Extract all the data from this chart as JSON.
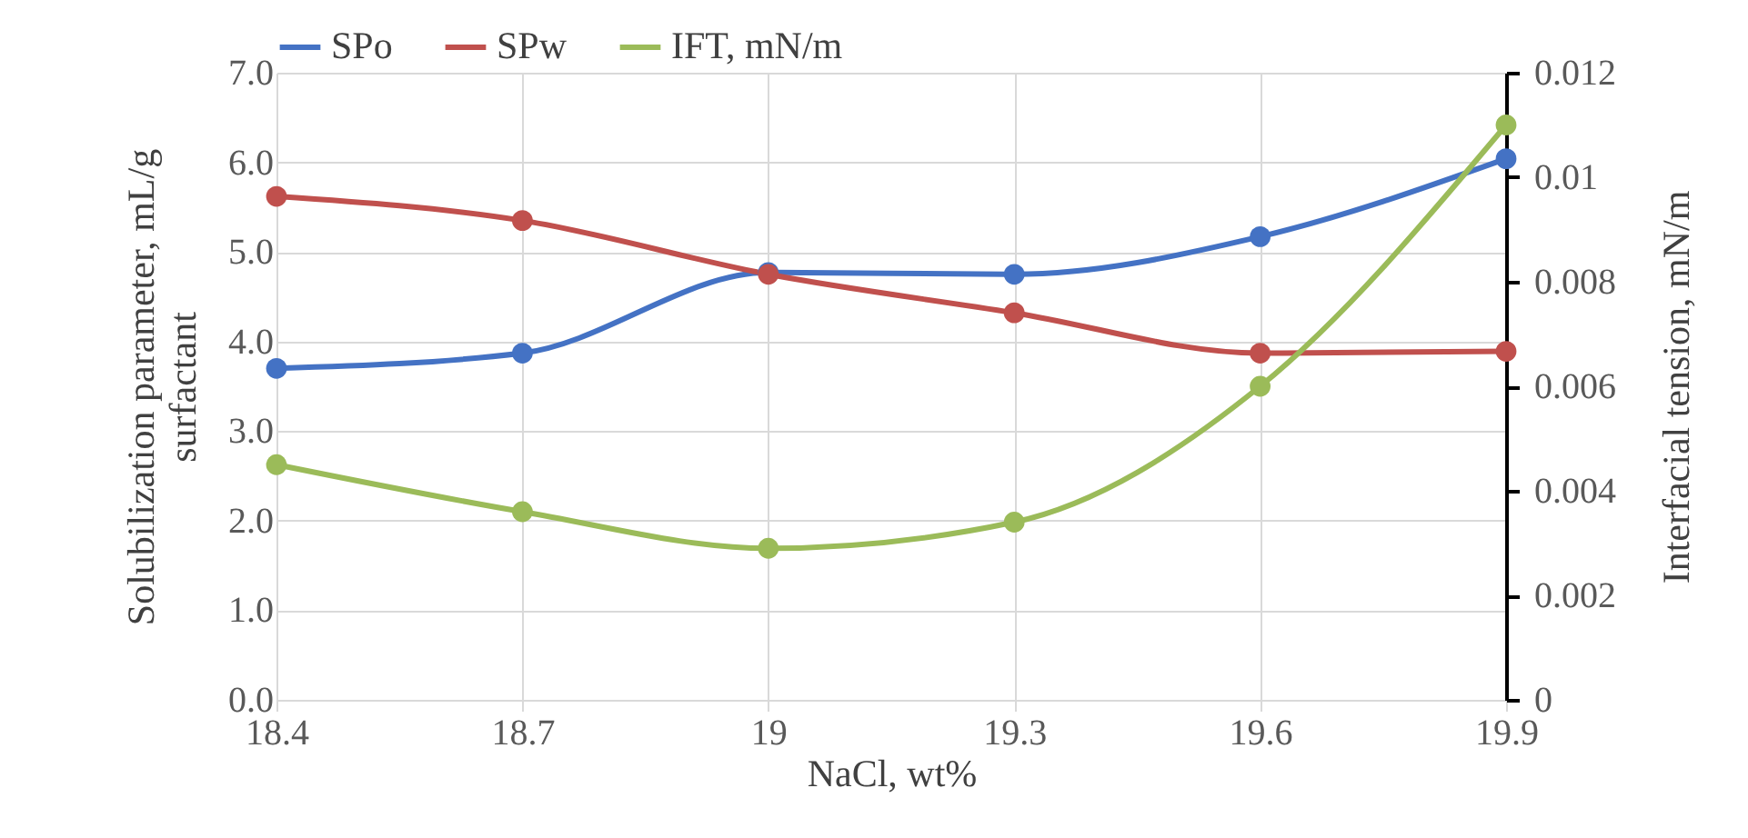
{
  "chart_data": {
    "type": "line",
    "xlabel": "NaCl, wt%",
    "ylabel": "Solubilization parameter, mL/g surfactant",
    "y2label": "Interfacial tension, mN/m",
    "x": [
      18.4,
      18.7,
      19,
      19.3,
      19.6,
      19.9
    ],
    "series": [
      {
        "name": "SPo",
        "color": "#4472c4",
        "values": [
          3.7,
          3.87,
          4.77,
          4.75,
          5.17,
          6.04
        ]
      },
      {
        "name": "SPw",
        "color": "#c0504d",
        "values": [
          5.62,
          5.35,
          4.75,
          4.32,
          3.87,
          3.89
        ]
      },
      {
        "name": "IFT, mN/m",
        "color": "#9bbb59",
        "axis": "y2",
        "values": [
          0.0045,
          0.0036,
          0.0029,
          0.0034,
          0.006,
          0.011
        ]
      }
    ],
    "xlim": [
      18.4,
      19.9
    ],
    "xticks": [
      18.4,
      18.7,
      19,
      19.3,
      19.6,
      19.9
    ],
    "ylim": [
      0,
      7
    ],
    "yticks": [
      {
        "value": 0,
        "label": "0.0"
      },
      {
        "value": 1,
        "label": "1.0"
      },
      {
        "value": 2,
        "label": "2.0"
      },
      {
        "value": 3,
        "label": "3.0"
      },
      {
        "value": 4,
        "label": "4.0"
      },
      {
        "value": 5,
        "label": "5.0"
      },
      {
        "value": 6,
        "label": "6.0"
      },
      {
        "value": 7,
        "label": "7.0"
      }
    ],
    "y2lim": [
      0,
      0.012
    ],
    "y2ticks": [
      0,
      0.002,
      0.004,
      0.006,
      0.008,
      0.01,
      0.012
    ],
    "grid": true,
    "legend": "top",
    "marker": "circle",
    "line_style": "solid"
  }
}
